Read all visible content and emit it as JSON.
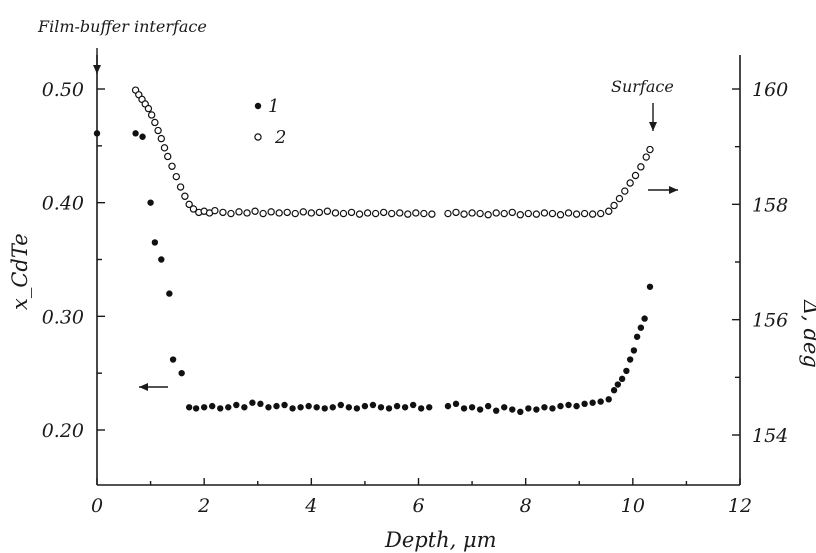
{
  "chart_data": {
    "type": "scatter",
    "xlabel": "Depth, μm",
    "ylabel": "x_CdTe",
    "ylabel_right": "Δ, deg",
    "xlim": [
      0,
      12
    ],
    "ylim": [
      0.15,
      0.51
    ],
    "ylim_right": [
      153.0,
      160.2
    ],
    "x_ticks": [
      "0",
      "2",
      "4",
      "6",
      "8",
      "10",
      "12"
    ],
    "y_ticks": [
      "0.20",
      "0.30",
      "0.40",
      "0.50"
    ],
    "y_right_ticks": [
      "154",
      "156",
      "158",
      "160"
    ],
    "annotations": {
      "interface": "Film-buffer interface",
      "surface": "Surface"
    },
    "series": [
      {
        "name": "1",
        "marker": "filled",
        "axis": "left",
        "points": [
          [
            0.0,
            0.461
          ],
          [
            0.72,
            0.461
          ],
          [
            0.85,
            0.458
          ],
          [
            1.0,
            0.4
          ],
          [
            1.08,
            0.365
          ],
          [
            1.2,
            0.35
          ],
          [
            1.35,
            0.32
          ],
          [
            1.42,
            0.262
          ],
          [
            1.58,
            0.25
          ],
          [
            1.72,
            0.22
          ],
          [
            1.85,
            0.219
          ],
          [
            2.0,
            0.22
          ],
          [
            2.15,
            0.221
          ],
          [
            2.3,
            0.219
          ],
          [
            2.45,
            0.22
          ],
          [
            2.6,
            0.222
          ],
          [
            2.75,
            0.22
          ],
          [
            2.9,
            0.224
          ],
          [
            3.05,
            0.223
          ],
          [
            3.2,
            0.22
          ],
          [
            3.35,
            0.221
          ],
          [
            3.5,
            0.222
          ],
          [
            3.65,
            0.219
          ],
          [
            3.8,
            0.22
          ],
          [
            3.95,
            0.221
          ],
          [
            4.1,
            0.22
          ],
          [
            4.25,
            0.219
          ],
          [
            4.4,
            0.22
          ],
          [
            4.55,
            0.222
          ],
          [
            4.7,
            0.22
          ],
          [
            4.85,
            0.219
          ],
          [
            5.0,
            0.221
          ],
          [
            5.15,
            0.222
          ],
          [
            5.3,
            0.22
          ],
          [
            5.45,
            0.219
          ],
          [
            5.6,
            0.221
          ],
          [
            5.75,
            0.22
          ],
          [
            5.9,
            0.222
          ],
          [
            6.05,
            0.219
          ],
          [
            6.2,
            0.22
          ],
          [
            6.55,
            0.221
          ],
          [
            6.7,
            0.223
          ],
          [
            6.85,
            0.219
          ],
          [
            7.0,
            0.22
          ],
          [
            7.15,
            0.218
          ],
          [
            7.3,
            0.221
          ],
          [
            7.45,
            0.217
          ],
          [
            7.6,
            0.22
          ],
          [
            7.75,
            0.218
          ],
          [
            7.9,
            0.216
          ],
          [
            8.05,
            0.219
          ],
          [
            8.2,
            0.218
          ],
          [
            8.35,
            0.22
          ],
          [
            8.5,
            0.219
          ],
          [
            8.65,
            0.221
          ],
          [
            8.8,
            0.222
          ],
          [
            8.95,
            0.221
          ],
          [
            9.1,
            0.223
          ],
          [
            9.25,
            0.224
          ],
          [
            9.4,
            0.225
          ],
          [
            9.55,
            0.227
          ],
          [
            9.65,
            0.235
          ],
          [
            9.72,
            0.24
          ],
          [
            9.8,
            0.245
          ],
          [
            9.88,
            0.252
          ],
          [
            9.95,
            0.262
          ],
          [
            10.02,
            0.27
          ],
          [
            10.08,
            0.282
          ],
          [
            10.15,
            0.29
          ],
          [
            10.22,
            0.298
          ],
          [
            10.32,
            0.326
          ]
        ]
      },
      {
        "name": "2",
        "marker": "open",
        "axis": "right",
        "points": [
          [
            0.72,
            159.98
          ],
          [
            0.78,
            159.9
          ],
          [
            0.84,
            159.82
          ],
          [
            0.9,
            159.74
          ],
          [
            0.96,
            159.66
          ],
          [
            1.02,
            159.55
          ],
          [
            1.08,
            159.42
          ],
          [
            1.14,
            159.28
          ],
          [
            1.2,
            159.14
          ],
          [
            1.26,
            158.98
          ],
          [
            1.32,
            158.83
          ],
          [
            1.4,
            158.66
          ],
          [
            1.48,
            158.48
          ],
          [
            1.56,
            158.3
          ],
          [
            1.64,
            158.14
          ],
          [
            1.72,
            158.0
          ],
          [
            1.8,
            157.92
          ],
          [
            1.9,
            157.86
          ],
          [
            2.0,
            157.88
          ],
          [
            2.1,
            157.85
          ],
          [
            2.2,
            157.89
          ],
          [
            2.35,
            157.86
          ],
          [
            2.5,
            157.84
          ],
          [
            2.65,
            157.87
          ],
          [
            2.8,
            157.85
          ],
          [
            2.95,
            157.88
          ],
          [
            3.1,
            157.84
          ],
          [
            3.25,
            157.87
          ],
          [
            3.4,
            157.85
          ],
          [
            3.55,
            157.86
          ],
          [
            3.7,
            157.84
          ],
          [
            3.85,
            157.87
          ],
          [
            4.0,
            157.85
          ],
          [
            4.15,
            157.86
          ],
          [
            4.3,
            157.88
          ],
          [
            4.45,
            157.85
          ],
          [
            4.6,
            157.84
          ],
          [
            4.75,
            157.86
          ],
          [
            4.9,
            157.83
          ],
          [
            5.05,
            157.85
          ],
          [
            5.2,
            157.84
          ],
          [
            5.35,
            157.86
          ],
          [
            5.5,
            157.84
          ],
          [
            5.65,
            157.85
          ],
          [
            5.8,
            157.83
          ],
          [
            5.95,
            157.85
          ],
          [
            6.1,
            157.84
          ],
          [
            6.25,
            157.83
          ],
          [
            6.55,
            157.84
          ],
          [
            6.7,
            157.86
          ],
          [
            6.85,
            157.83
          ],
          [
            7.0,
            157.85
          ],
          [
            7.15,
            157.84
          ],
          [
            7.3,
            157.82
          ],
          [
            7.45,
            157.85
          ],
          [
            7.6,
            157.84
          ],
          [
            7.75,
            157.86
          ],
          [
            7.9,
            157.82
          ],
          [
            8.05,
            157.84
          ],
          [
            8.2,
            157.83
          ],
          [
            8.35,
            157.85
          ],
          [
            8.5,
            157.84
          ],
          [
            8.65,
            157.82
          ],
          [
            8.8,
            157.85
          ],
          [
            8.95,
            157.83
          ],
          [
            9.1,
            157.84
          ],
          [
            9.25,
            157.83
          ],
          [
            9.4,
            157.84
          ],
          [
            9.55,
            157.88
          ],
          [
            9.65,
            157.98
          ],
          [
            9.75,
            158.1
          ],
          [
            9.85,
            158.23
          ],
          [
            9.95,
            158.37
          ],
          [
            10.05,
            158.5
          ],
          [
            10.15,
            158.65
          ],
          [
            10.25,
            158.82
          ],
          [
            10.32,
            158.95
          ]
        ]
      }
    ]
  }
}
